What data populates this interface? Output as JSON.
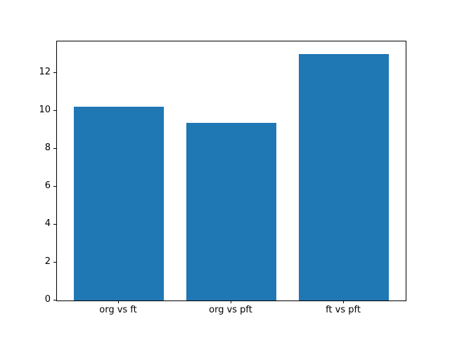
{
  "chart_data": {
    "type": "bar",
    "title": "",
    "xlabel": "",
    "ylabel": "",
    "categories": [
      "org vs ft",
      "org vs pft",
      "ft vs pft"
    ],
    "values": [
      10.2,
      9.35,
      13.0
    ],
    "ylim": [
      0,
      13.65
    ],
    "yticks": [
      0,
      2,
      4,
      6,
      8,
      10,
      12
    ],
    "bar_color": "#1f77b4",
    "grid": false,
    "legend": null
  }
}
